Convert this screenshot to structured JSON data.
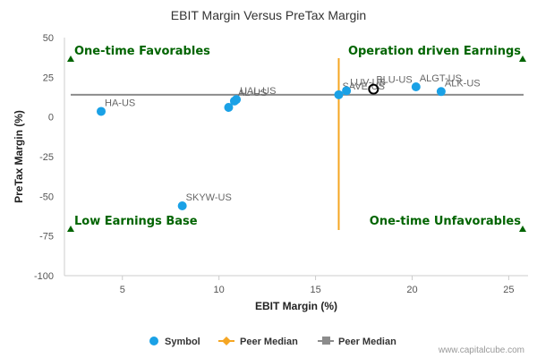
{
  "chart_data": {
    "type": "scatter",
    "title": "EBIT Margin Versus PreTax Margin",
    "xlabel": "EBIT Margin (%)",
    "ylabel": "PreTax Margin (%)",
    "xlim": [
      2,
      26
    ],
    "ylim": [
      -100,
      50
    ],
    "x_ticks": [
      5,
      10,
      15,
      20,
      25
    ],
    "y_ticks": [
      50,
      25,
      0,
      -25,
      -50,
      -75,
      -100
    ],
    "grid": false,
    "points": [
      {
        "label": "HA-US",
        "x": 3.9,
        "y": 3.5
      },
      {
        "label": "SKYW-US",
        "x": 8.1,
        "y": -56
      },
      {
        "label": "",
        "x": 10.5,
        "y": 6
      },
      {
        "label": "AL-US",
        "x": 10.8,
        "y": 10
      },
      {
        "label": "UAL-US",
        "x": 10.9,
        "y": 11
      },
      {
        "label": "SAVE-US",
        "x": 16.2,
        "y": 14
      },
      {
        "label": "LUV-US",
        "x": 16.6,
        "y": 16.5
      },
      {
        "label": "ALGT-US",
        "x": 20.2,
        "y": 19
      },
      {
        "label": "ALK-US",
        "x": 21.5,
        "y": 16
      }
    ],
    "highlight": {
      "label": "BLU-US",
      "x": 18.0,
      "y": 17.5
    },
    "peer_median_x": 16.2,
    "peer_median_y": 14,
    "quadrants": {
      "top_left": "One-time Favorables",
      "top_right": "Operation driven Earnings",
      "bottom_left": "Low Earnings Base",
      "bottom_right": "One-time Unfavorables"
    },
    "legend": {
      "placement": "bottom",
      "items": [
        "Symbol",
        "Peer Median",
        "Peer Median"
      ]
    },
    "colors": {
      "point": "#1aa1e6",
      "median_x": "#f5a623",
      "median_y": "#8c8c8c",
      "quadrant_text": "#006400",
      "axis": "#cccccc"
    }
  },
  "footer": {
    "credit": "www.capitalcube.com"
  }
}
